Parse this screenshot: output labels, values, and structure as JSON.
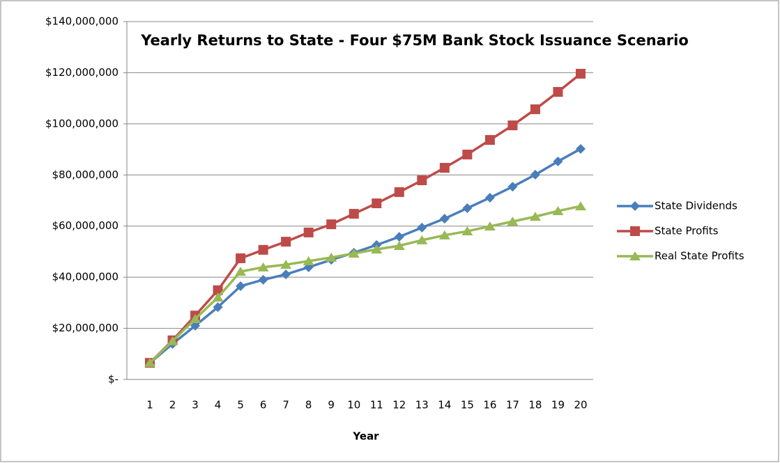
{
  "chart_data": {
    "type": "line",
    "title": "Yearly Returns to State - Four $75M Bank Stock Issuance Scenario",
    "x_label": "Year",
    "categories": [
      "1",
      "2",
      "3",
      "4",
      "5",
      "6",
      "7",
      "8",
      "9",
      "10",
      "11",
      "12",
      "13",
      "14",
      "15",
      "16",
      "17",
      "18",
      "19",
      "20"
    ],
    "series": [
      {
        "name": "State Dividends",
        "color": "#4a7ebb",
        "marker": "diamond",
        "values": [
          6500000,
          13900000,
          21000000,
          28300000,
          36500000,
          39000000,
          41100000,
          43900000,
          46800000,
          49600000,
          52600000,
          55800000,
          59400000,
          62900000,
          67000000,
          71100000,
          75400000,
          80100000,
          85300000,
          90200000
        ]
      },
      {
        "name": "State Profits",
        "color": "#be4b48",
        "marker": "square",
        "values": [
          6500000,
          15300000,
          25000000,
          34900000,
          47400000,
          50700000,
          53900000,
          57500000,
          60700000,
          64800000,
          68900000,
          73300000,
          77900000,
          82800000,
          88000000,
          93700000,
          99400000,
          105700000,
          112500000,
          119600000
        ]
      },
      {
        "name": "Real State Profits",
        "color": "#98b954",
        "marker": "triangle",
        "values": [
          6500000,
          15000000,
          23700000,
          32100000,
          42200000,
          43900000,
          44900000,
          46300000,
          47700000,
          49300000,
          50900000,
          52300000,
          54500000,
          56400000,
          58000000,
          59900000,
          61800000,
          63700000,
          65900000,
          67800000
        ]
      }
    ],
    "ylim": [
      0,
      140000000
    ],
    "yticks": [
      {
        "value": 0,
        "label": "$-"
      },
      {
        "value": 20000000,
        "label": "$20,000,000"
      },
      {
        "value": 40000000,
        "label": "$40,000,000"
      },
      {
        "value": 60000000,
        "label": "$60,000,000"
      },
      {
        "value": 80000000,
        "label": "$80,000,000"
      },
      {
        "value": 100000000,
        "label": "$100,000,000"
      },
      {
        "value": 120000000,
        "label": "$120,000,000"
      },
      {
        "value": 140000000,
        "label": "$140,000,000"
      }
    ],
    "grid": true,
    "legend": "right"
  }
}
